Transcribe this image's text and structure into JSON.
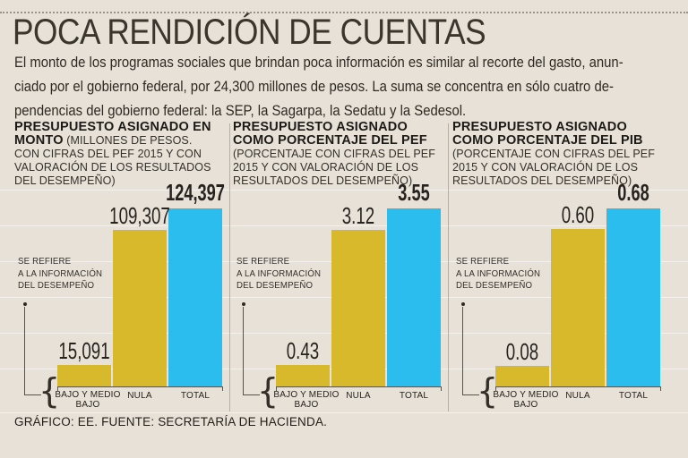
{
  "page": {
    "title": "POCA RENDICIÓN DE CUENTAS",
    "intro_lines": [
      "El monto de los programas sociales que brindan poca información es similar al recorte del gasto, anun-",
      "ciado por el gobierno federal, por 24,300 millones de pesos. La suma se concentra en sólo cuatro de-",
      "pendencias del gobierno federal: la SEP, la Sagarpa, la Sedatu y la Sedesol."
    ],
    "footer": "GRÁFICO: EE. FUENTE: SECRETARÍA DE HACIENDA."
  },
  "colors": {
    "background": "#e8e1d8",
    "bar_yellow": "#d9b92c",
    "bar_blue": "#2bbdee",
    "text_dark": "#26231e"
  },
  "annotation": {
    "lines": [
      "SE REFIERE",
      "A LA INFORMACIÓN",
      "DEL DESEMPEÑO"
    ],
    "brace_char": "{"
  },
  "chart_data": [
    {
      "type": "bar",
      "title_bold": "PRESUPUESTO ASIGNADO EN MONTO",
      "subtitle": "(MILLONES DE PESOS. CON CIFRAS DEL PEF 2015 Y CON VALORACIÓN DE LOS RESULTADOS DEL DESEMPEÑO)",
      "categories": [
        "BAJO Y MEDIO BAJO",
        "NULA",
        "TOTAL"
      ],
      "values": [
        15091,
        109307,
        124397
      ],
      "value_labels": [
        "15,091",
        "109,307",
        "124,397"
      ],
      "bar_colors": [
        "#d9b92c",
        "#d9b92c",
        "#2bbdee"
      ],
      "ylim": [
        0,
        124397
      ],
      "annotation": "SE REFIERE A LA INFORMACIÓN DEL DESEMPEÑO"
    },
    {
      "type": "bar",
      "title_bold": "PRESUPUESTO ASIGNADO COMO PORCENTAJE DEL PEF",
      "subtitle": "(PORCENTAJE CON CIFRAS DEL PEF 2015 Y CON VALORACIÓN DE LOS RESULTADOS DEL DESEMPEÑO)",
      "categories": [
        "BAJO Y MEDIO BAJO",
        "NULA",
        "TOTAL"
      ],
      "values": [
        0.43,
        3.12,
        3.55
      ],
      "value_labels": [
        "0.43",
        "3.12",
        "3.55"
      ],
      "bar_colors": [
        "#d9b92c",
        "#d9b92c",
        "#2bbdee"
      ],
      "ylim": [
        0,
        3.55
      ],
      "annotation": "SE REFIERE A LA INFORMACIÓN DEL DESEMPEÑO"
    },
    {
      "type": "bar",
      "title_bold": "PRESUPUESTO ASIGNADO COMO PORCENTAJE DEL PIB",
      "subtitle": "(PORCENTAJE CON CIFRAS DEL PEF 2015 Y CON VALORACIÓN DE LOS RESULTADOS DEL DESEMPEÑO)",
      "categories": [
        "BAJO Y MEDIO BAJO",
        "NULA",
        "TOTAL"
      ],
      "values": [
        0.08,
        0.6,
        0.68
      ],
      "value_labels": [
        "0.08",
        "0.60",
        "0.68"
      ],
      "bar_colors": [
        "#d9b92c",
        "#d9b92c",
        "#2bbdee"
      ],
      "ylim": [
        0,
        0.68
      ],
      "annotation": "SE REFIERE A LA INFORMACIÓN DEL DESEMPEÑO"
    }
  ]
}
